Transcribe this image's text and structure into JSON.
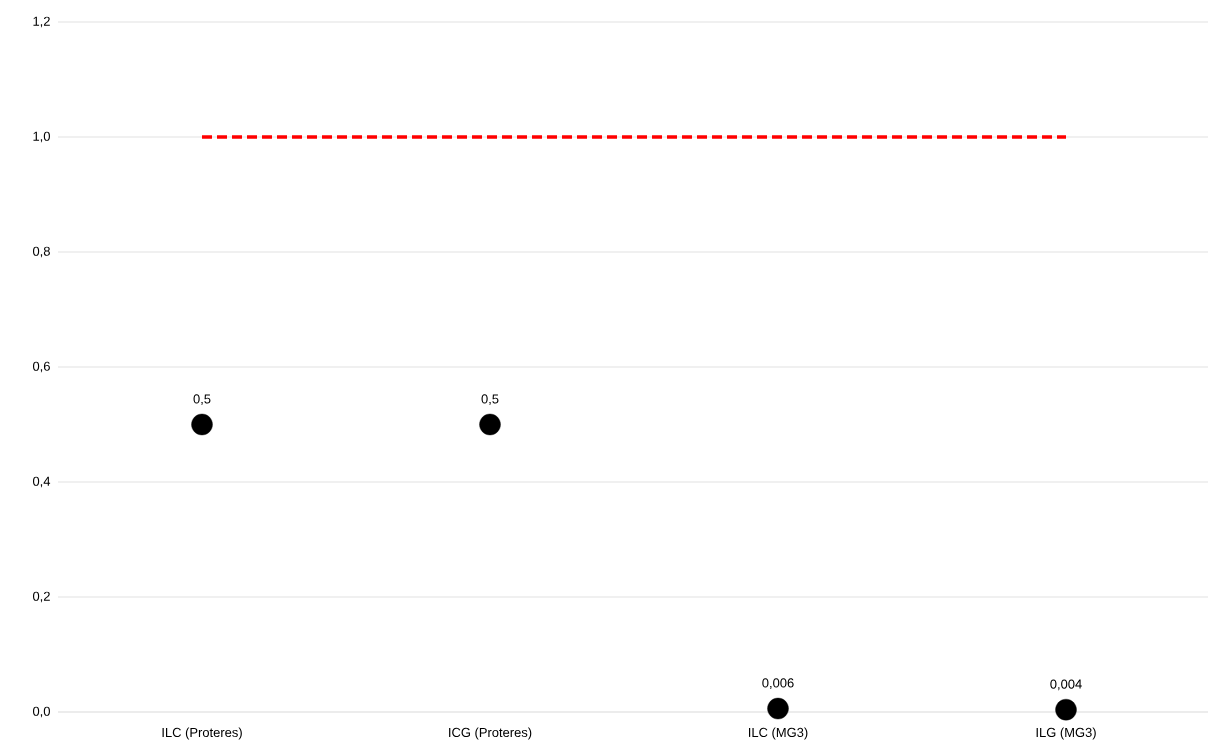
{
  "chart_data": {
    "type": "scatter",
    "categories": [
      "ILC (Proteres)",
      "ICG (Proteres)",
      "ILC (MG3)",
      "ILG (MG3)"
    ],
    "series": [
      {
        "color": "#000000",
        "marker": "circle",
        "values": [
          0.5,
          0.5,
          0.006,
          0.004
        ],
        "value_labels": [
          "0,5",
          "0,5",
          "0,006",
          "0,004"
        ]
      },
      {
        "type": "line",
        "color": "#ff0000",
        "marker": "none",
        "line_style": "dashed",
        "values": [
          1.0,
          1.0,
          1.0,
          1.0
        ]
      }
    ],
    "ylim": [
      0,
      1.2
    ],
    "yticks": [
      {
        "value": 0,
        "label": "0,0"
      },
      {
        "value": 0.2,
        "label": "0,2"
      },
      {
        "value": 0.4,
        "label": "0,4"
      },
      {
        "value": 0.6,
        "label": "0,6"
      },
      {
        "value": 0.8,
        "label": "0,8"
      },
      {
        "value": 1.0,
        "label": "1,0"
      },
      {
        "value": 1.2,
        "label": "1,2"
      }
    ],
    "grid": "y"
  }
}
